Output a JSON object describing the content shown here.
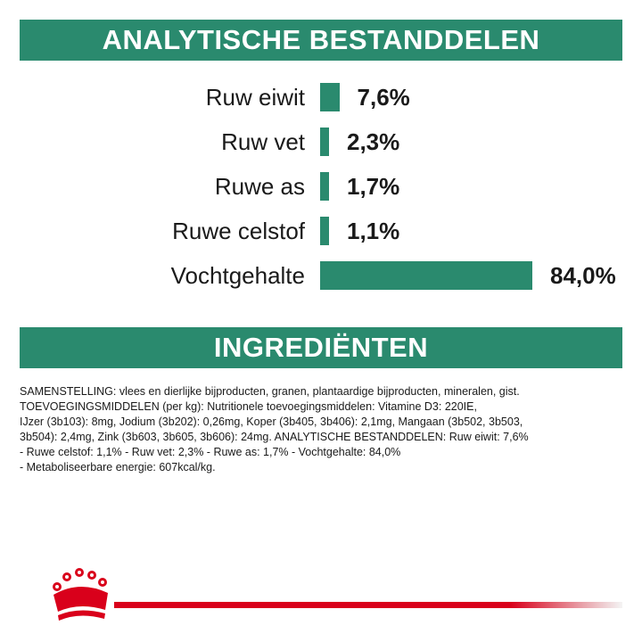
{
  "sections": {
    "analysis_title": "ANALYTISCHE BESTANDDELEN",
    "ingredients_title": "INGREDIËNTEN"
  },
  "nutrients": [
    {
      "label": "Ruw eiwit",
      "value": "7,6%",
      "percent": 7.6
    },
    {
      "label": "Ruw vet",
      "value": "2,3%",
      "percent": 2.3
    },
    {
      "label": "Ruwe as",
      "value": "1,7%",
      "percent": 1.7
    },
    {
      "label": "Ruwe celstof",
      "value": "1,1%",
      "percent": 1.1
    },
    {
      "label": "Vochtgehalte",
      "value": "84,0%",
      "percent": 84.0
    }
  ],
  "ingredients_lines": [
    "SAMENSTELLING: vlees en dierlijke bijproducten, granen, plantaardige bijproducten, mineralen, gist.",
    "TOEVOEGINGSMIDDELEN (per kg): Nutritionele toevoegingsmiddelen: Vitamine D3: 220IE,",
    "IJzer (3b103): 8mg, Jodium (3b202): 0,26mg, Koper (3b405, 3b406): 2,1mg, Mangaan (3b502, 3b503,",
    "3b504): 2,4mg, Zink (3b603, 3b605, 3b606): 24mg. ANALYTISCHE BESTANDDELEN: Ruw eiwit: 7,6%",
    "- Ruwe celstof: 1,1% - Ruw vet: 2,3% - Ruwe as: 1,7% - Vochtgehalte: 84,0%",
    "- Metaboliseerbare energie: 607kcal/kg."
  ],
  "colors": {
    "brand_green": "#2a8a6e",
    "brand_red": "#d9001b"
  },
  "footer": {
    "logo_icon": "royal-crown-icon"
  }
}
